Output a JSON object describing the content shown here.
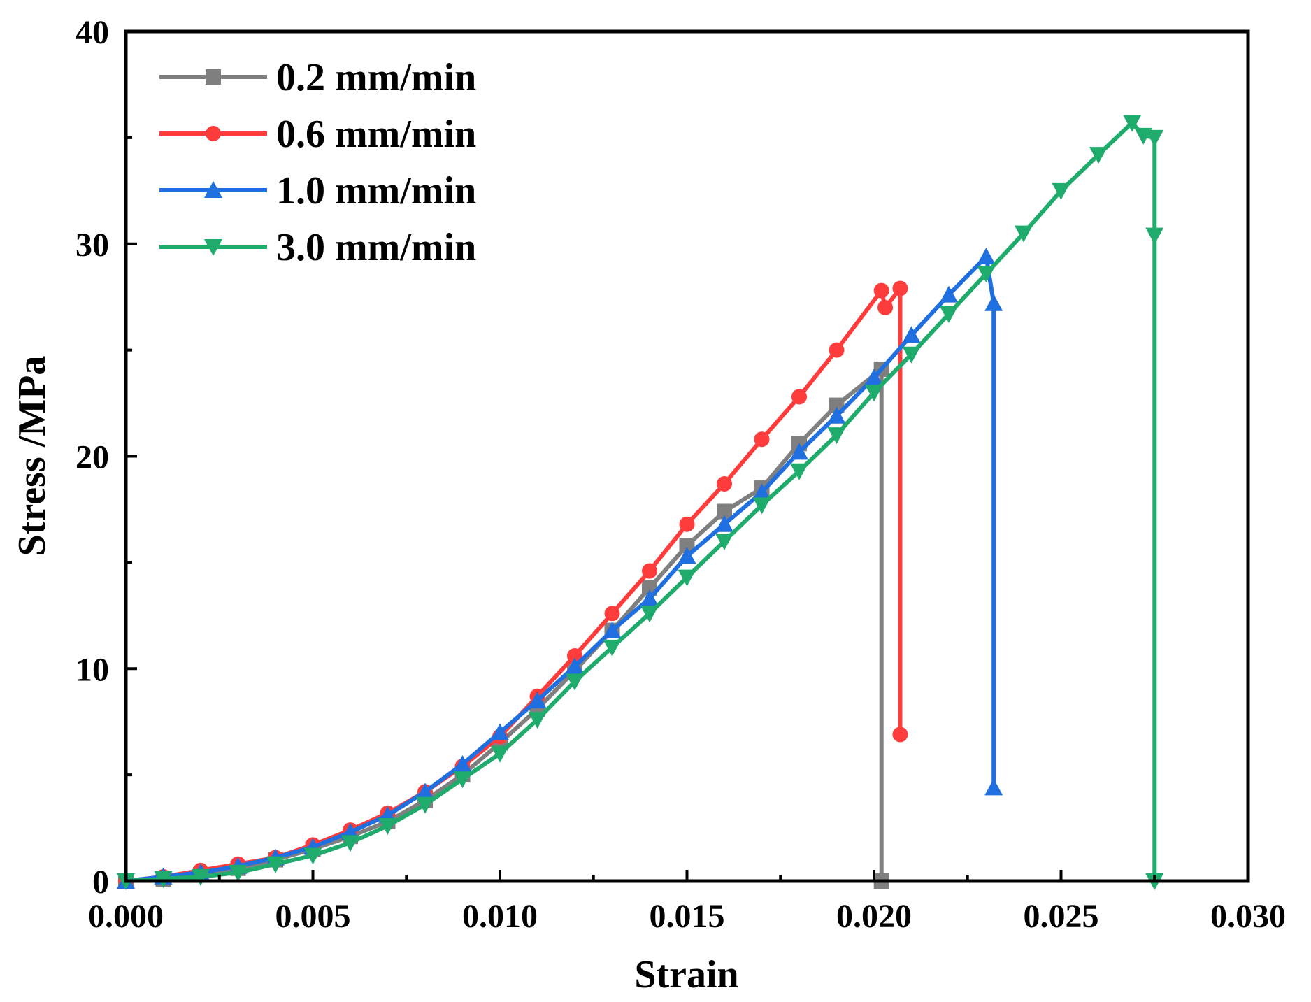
{
  "chart_data": {
    "type": "line",
    "title": "",
    "xlabel": "Strain",
    "ylabel": "Stress /MPa",
    "xlim": [
      0,
      0.03
    ],
    "ylim": [
      0,
      40
    ],
    "xticks": [
      "0.000",
      "0.005",
      "0.010",
      "0.015",
      "0.020",
      "0.025",
      "0.030"
    ],
    "yticks": [
      "0",
      "10",
      "20",
      "30",
      "40"
    ],
    "legend_position": "top-left",
    "series": [
      {
        "name": "0.2 mm/min",
        "color": "#7f7f7f",
        "marker": "square",
        "x": [
          0,
          0.001,
          0.002,
          0.003,
          0.004,
          0.005,
          0.006,
          0.007,
          0.008,
          0.009,
          0.01,
          0.011,
          0.012,
          0.013,
          0.014,
          0.015,
          0.016,
          0.017,
          0.018,
          0.019,
          0.0202,
          0.0202
        ],
        "y": [
          0,
          0.1,
          0.3,
          0.6,
          1.0,
          1.5,
          2.1,
          2.8,
          3.8,
          5.0,
          6.5,
          8.1,
          9.9,
          11.8,
          13.8,
          15.8,
          17.4,
          18.5,
          20.6,
          22.4,
          24.1,
          0
        ]
      },
      {
        "name": "0.6 mm/min",
        "color": "#ff3c3c",
        "marker": "circle",
        "x": [
          0,
          0.001,
          0.002,
          0.003,
          0.004,
          0.005,
          0.006,
          0.007,
          0.008,
          0.009,
          0.01,
          0.011,
          0.012,
          0.013,
          0.014,
          0.015,
          0.016,
          0.017,
          0.018,
          0.019,
          0.0202,
          0.0203,
          0.0207,
          0.0207
        ],
        "y": [
          0,
          0.2,
          0.5,
          0.8,
          1.1,
          1.7,
          2.4,
          3.2,
          4.2,
          5.4,
          6.8,
          8.7,
          10.6,
          12.6,
          14.6,
          16.8,
          18.7,
          20.8,
          22.8,
          25.0,
          27.8,
          27.0,
          27.9,
          6.9
        ]
      },
      {
        "name": "1.0 mm/min",
        "color": "#1f6fe0",
        "marker": "triangle-up",
        "x": [
          0,
          0.001,
          0.002,
          0.003,
          0.004,
          0.005,
          0.006,
          0.007,
          0.008,
          0.009,
          0.01,
          0.011,
          0.012,
          0.013,
          0.014,
          0.015,
          0.016,
          0.017,
          0.018,
          0.019,
          0.02,
          0.021,
          0.022,
          0.023,
          0.0232,
          0.0232
        ],
        "y": [
          0,
          0.2,
          0.4,
          0.7,
          1.1,
          1.6,
          2.3,
          3.1,
          4.2,
          5.5,
          7.0,
          8.5,
          10.1,
          11.8,
          13.3,
          15.3,
          16.8,
          18.3,
          20.2,
          21.9,
          23.7,
          25.7,
          27.6,
          29.4,
          27.2,
          4.4
        ]
      },
      {
        "name": "3.0 mm/min",
        "color": "#1fab6c",
        "marker": "triangle-down",
        "x": [
          0,
          0.001,
          0.002,
          0.003,
          0.004,
          0.005,
          0.006,
          0.007,
          0.008,
          0.009,
          0.01,
          0.011,
          0.012,
          0.013,
          0.014,
          0.015,
          0.016,
          0.017,
          0.018,
          0.019,
          0.02,
          0.021,
          0.022,
          0.023,
          0.024,
          0.025,
          0.026,
          0.0269,
          0.0272,
          0.0275,
          0.0275,
          0.0275
        ],
        "y": [
          0,
          0.1,
          0.2,
          0.4,
          0.8,
          1.2,
          1.8,
          2.6,
          3.6,
          4.8,
          6.0,
          7.6,
          9.4,
          11.0,
          12.6,
          14.3,
          16.0,
          17.7,
          19.3,
          21.0,
          23.0,
          24.8,
          26.7,
          28.6,
          30.5,
          32.5,
          34.2,
          35.7,
          35.1,
          35.0,
          30.4,
          0
        ]
      }
    ]
  }
}
